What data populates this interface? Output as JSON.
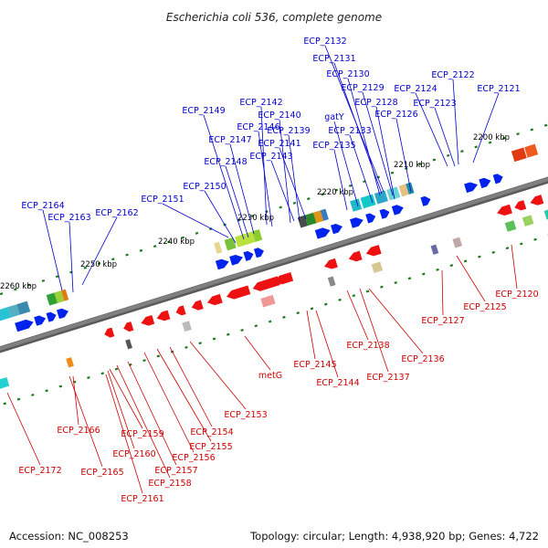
{
  "title": "Escherichia coli 536, complete genome",
  "footer": {
    "accession": "Accession: NC_008253",
    "topology": "Topology: circular; Length: 4,938,920 bp; Genes: 4,722"
  },
  "colors": {
    "upper_labels": "#0000cc",
    "lower_labels": "#cc0000",
    "forward_genes": "#0022ee",
    "reverse_genes": "#ee1111",
    "backbone": "#808080",
    "ticks": "#1a7a1a"
  },
  "tick_labels": [
    "2200 kbp",
    "2210 kbp",
    "2220 kbp",
    "2230 kbp",
    "2240 kbp",
    "2250 kbp",
    "2260 kbp"
  ],
  "upper_labels": [
    "ECP_2132",
    "ECP_2131",
    "ECP_2130",
    "ECP_2129",
    "ECP_2122",
    "ECP_2124",
    "ECP_2121",
    "ECP_2128",
    "ECP_2123",
    "ECP_2142",
    "ECP_2126",
    "ECP_2149",
    "ECP_2146",
    "ECP_2140",
    "gatY",
    "ECP_2133",
    "ECP_2139",
    "ECP_2147",
    "ECP_2141",
    "ECP_2135",
    "ECP_2143",
    "ECP_2148",
    "ECP_2150",
    "ECP_2151",
    "ECP_2164",
    "ECP_2163",
    "ECP_2162"
  ],
  "lower_labels": [
    "ECP_2120",
    "ECP_2125",
    "ECP_2127",
    "ECP_2138",
    "ECP_2136",
    "ECP_2145",
    "metG",
    "ECP_2137",
    "ECP_2144",
    "ECP_2153",
    "ECP_2166",
    "ECP_2154",
    "ECP_2159",
    "ECP_2155",
    "ECP_2160",
    "ECP_2156",
    "ECP_2172",
    "ECP_2165",
    "ECP_2157",
    "ECP_2158",
    "ECP_2161"
  ]
}
